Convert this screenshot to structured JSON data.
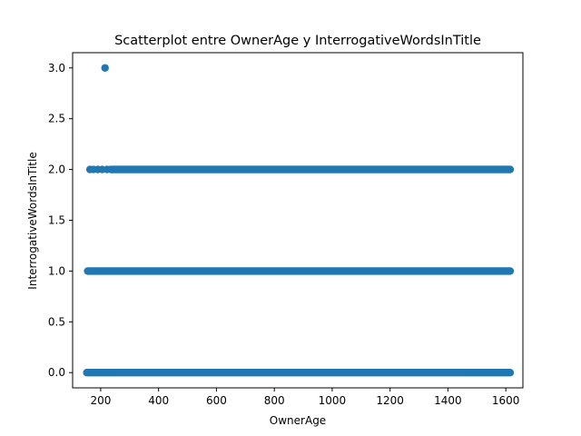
{
  "chart_data": {
    "type": "scatter",
    "title": "Scatterplot entre OwnerAge y InterrogativeWordsInTitle",
    "xlabel": "OwnerAge",
    "ylabel": "InterrogativeWordsInTitle",
    "xlim": [
      103,
      1659
    ],
    "ylim": [
      -0.15,
      3.15
    ],
    "xticks": [
      200,
      400,
      600,
      800,
      1000,
      1200,
      1400,
      1600
    ],
    "yticks": [
      0.0,
      0.5,
      1.0,
      1.5,
      2.0,
      2.5,
      3.0
    ],
    "xtick_labels": [
      "200",
      "400",
      "600",
      "800",
      "1000",
      "1200",
      "1400",
      "1600"
    ],
    "ytick_labels": [
      "0.0",
      "0.5",
      "1.0",
      "1.5",
      "2.0",
      "2.5",
      "3.0"
    ],
    "grid": false,
    "marker_color": "#1f77b4",
    "series": [
      {
        "points": [
          {
            "x": 215,
            "y": 3
          },
          {
            "x": 163,
            "y": 2
          },
          {
            "x": 175,
            "y": 2
          },
          {
            "x": 190,
            "y": 2
          },
          {
            "x": 205,
            "y": 2
          },
          {
            "x": 222,
            "y": 2
          }
        ],
        "dense_ranges": [
          {
            "y": 0,
            "x_start": 152,
            "x_end": 1615
          },
          {
            "y": 1,
            "x_start": 155,
            "x_end": 1615
          },
          {
            "y": 2,
            "x_start": 235,
            "x_end": 1615
          }
        ]
      }
    ]
  }
}
